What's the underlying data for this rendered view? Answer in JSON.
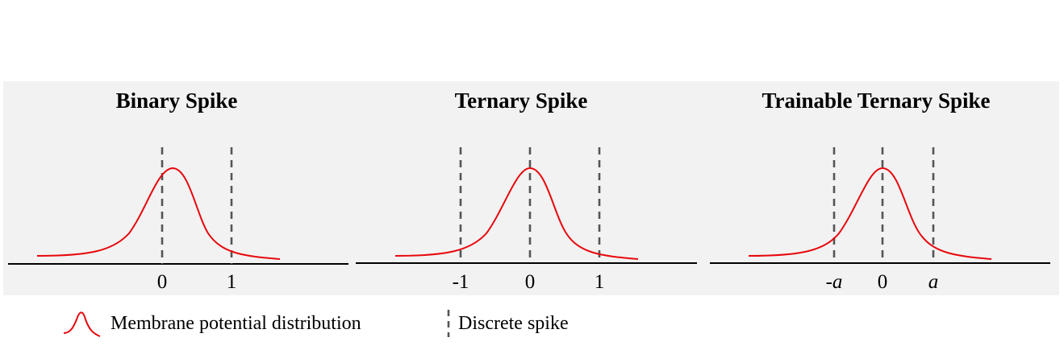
{
  "panels": [
    {
      "title": "Binary Spike",
      "ticks": [
        "0",
        "1"
      ],
      "italic_ticks": [
        false,
        false
      ]
    },
    {
      "title": "Ternary Spike",
      "ticks": [
        "-1",
        "0",
        "1"
      ],
      "italic_ticks": [
        false,
        false,
        false
      ]
    },
    {
      "title": "Trainable Ternary Spike",
      "ticks": [
        "-a",
        "0",
        "a"
      ],
      "italic_ticks": [
        true,
        false,
        true
      ]
    }
  ],
  "legend": {
    "distribution_label": "Membrane potential distribution",
    "spike_label": "Discrete spike"
  },
  "colors": {
    "curve": "#e8070c",
    "spike_line": "#555555",
    "axis": "#000000",
    "background": "#f2f2f2"
  }
}
